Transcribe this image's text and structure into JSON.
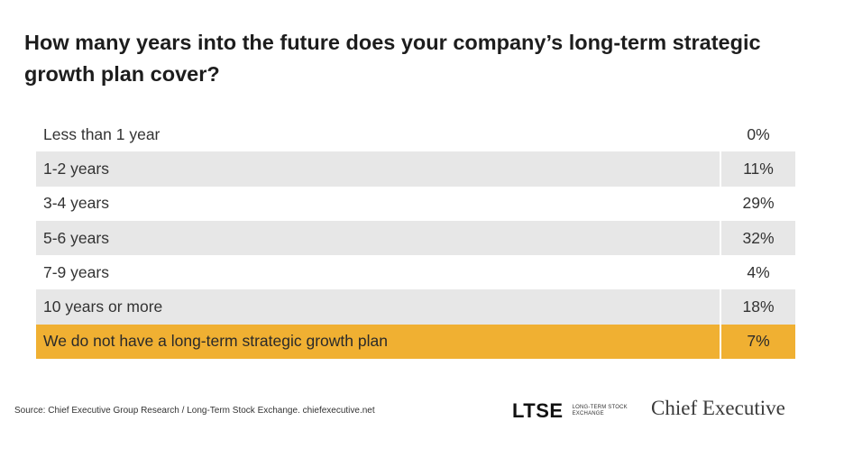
{
  "title": "How many years into the future does your company’s long-term strategic growth plan cover?",
  "chart_data": {
    "type": "table",
    "title": "How many years into the future does your company’s long-term strategic growth plan cover?",
    "categories": [
      "Less than 1 year",
      "1-2 years",
      "3-4 years",
      "5-6 years",
      "7-9 years",
      "10 years or more",
      "We do not have a long-term strategic growth plan"
    ],
    "values": [
      0,
      11,
      29,
      32,
      4,
      18,
      7
    ],
    "value_labels": [
      "0%",
      "11%",
      "29%",
      "32%",
      "4%",
      "18%",
      "7%"
    ],
    "highlighted_category": "We do not have a long-term strategic growth plan",
    "colors": {
      "shade": "#e7e7e7",
      "highlight": "#f0b032"
    }
  },
  "footer": {
    "source": "Source:  Chief Executive Group Research  / Long-Term Stock Exchange. chiefexecutive.net",
    "ltse_logo": "LTSE",
    "ltse_sub": "LONG-TERM STOCK EXCHANGE",
    "ce_logo": "Chief Executive"
  }
}
